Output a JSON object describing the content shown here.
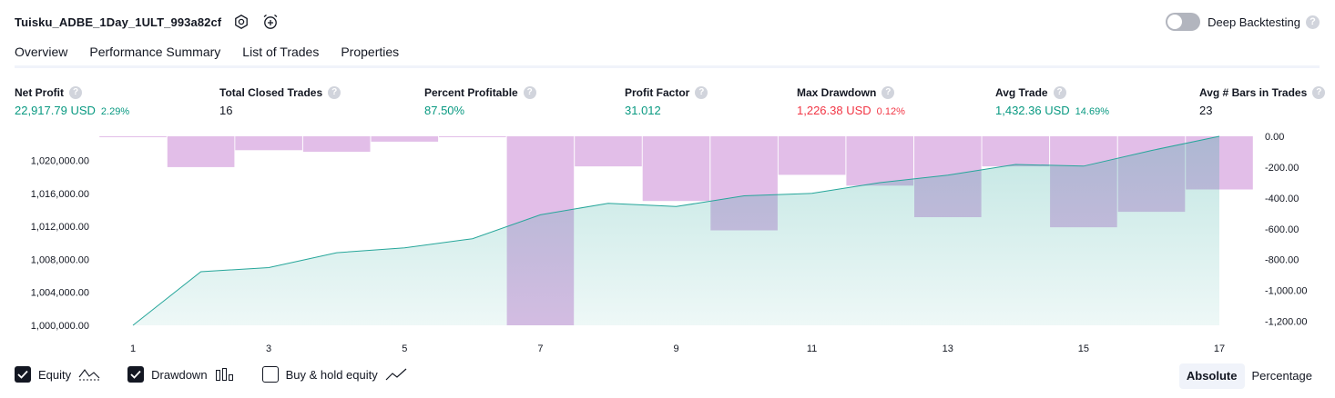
{
  "header": {
    "strategy_name": "Tuisku_ADBE_1Day_1ULT_993a82cf",
    "settings_icon": "gear-icon",
    "alert_icon": "alarm-clock-plus-icon",
    "deep_backtesting_label": "Deep Backtesting",
    "deep_backtesting_enabled": false,
    "help_glyph": "?"
  },
  "tabs": [
    {
      "label": "Overview",
      "active": true
    },
    {
      "label": "Performance Summary",
      "active": false
    },
    {
      "label": "List of Trades",
      "active": false
    },
    {
      "label": "Properties",
      "active": false
    }
  ],
  "metrics": [
    {
      "label": "Net Profit",
      "value": "22,917.79 USD",
      "pct": "2.29%",
      "color": "#089981"
    },
    {
      "label": "Total Closed Trades",
      "value": "16",
      "pct": "",
      "color": "#131722"
    },
    {
      "label": "Percent Profitable",
      "value": "87.50%",
      "pct": "",
      "color": "#089981"
    },
    {
      "label": "Profit Factor",
      "value": "31.012",
      "pct": "",
      "color": "#089981"
    },
    {
      "label": "Max Drawdown",
      "value": "1,226.38 USD",
      "pct": "0.12%",
      "color": "#f23645"
    },
    {
      "label": "Avg Trade",
      "value": "1,432.36 USD",
      "pct": "14.69%",
      "color": "#089981"
    },
    {
      "label": "Avg # Bars in Trades",
      "value": "23",
      "pct": "",
      "color": "#131722"
    }
  ],
  "chart_data": {
    "type": "area",
    "x_ticks": [
      "1",
      "3",
      "5",
      "7",
      "9",
      "11",
      "13",
      "15",
      "17"
    ],
    "left_axis": {
      "ticks": [
        "1,000,000.00",
        "1,004,000.00",
        "1,008,000.00",
        "1,012,000.00",
        "1,016,000.00",
        "1,020,000.00"
      ],
      "range": [
        1000000,
        1022917.79
      ]
    },
    "right_axis": {
      "ticks": [
        "0.00",
        "-200.00",
        "-400.00",
        "-600.00",
        "-800.00",
        "-1,000.00",
        "-1,200.00"
      ],
      "range": [
        -1226.38,
        0
      ]
    },
    "equity": {
      "x": [
        1,
        2,
        3,
        4,
        5,
        6,
        7,
        8,
        9,
        10,
        11,
        12,
        13,
        14,
        15,
        16,
        17
      ],
      "values": [
        1000000,
        1006500,
        1007000,
        1008800,
        1009400,
        1010500,
        1013400,
        1014800,
        1014400,
        1015700,
        1016000,
        1017300,
        1018200,
        1019500,
        1019300,
        1021200,
        1022917.79
      ],
      "color": "#26a69a"
    },
    "drawdown": {
      "x": [
        1,
        2,
        3,
        4,
        5,
        6,
        7,
        8,
        9,
        10,
        11,
        12,
        13,
        14,
        15,
        16,
        17
      ],
      "values": [
        -5,
        -200,
        -90,
        -100,
        -35,
        0,
        -1226.38,
        -195,
        -420,
        -610,
        -250,
        -320,
        -525,
        -195,
        -590,
        -490,
        -345
      ],
      "color": "#ce93d8"
    },
    "grid": false,
    "legend": "bottom-left"
  },
  "legend": [
    {
      "label": "Equity",
      "checked": true,
      "icon": "equity-line-icon"
    },
    {
      "label": "Drawdown",
      "checked": true,
      "icon": "drawdown-bars-icon"
    },
    {
      "label": "Buy & hold equity",
      "checked": false,
      "icon": "buy-hold-line-icon"
    }
  ],
  "scale_toggle": {
    "options": [
      "Absolute",
      "Percentage"
    ],
    "selected": "Absolute"
  }
}
